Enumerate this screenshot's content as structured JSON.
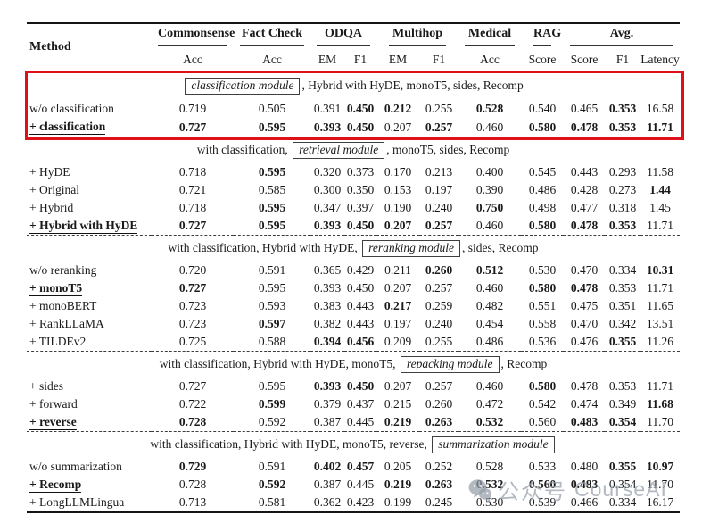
{
  "table": {
    "header": {
      "method": "Method",
      "groups": [
        {
          "label": "Commonsense",
          "span": 1
        },
        {
          "label": "Fact Check",
          "span": 1
        },
        {
          "label": "ODQA",
          "span": 2
        },
        {
          "label": "Multihop",
          "span": 2
        },
        {
          "label": "Medical",
          "span": 1
        },
        {
          "label": "RAG",
          "span": 1
        },
        {
          "label": "Avg.",
          "span": 3
        }
      ],
      "subheaders": [
        "Acc",
        "Acc",
        "EM",
        "F1",
        "EM",
        "F1",
        "Acc",
        "Score",
        "Score",
        "F1",
        "Latency"
      ]
    },
    "sections": [
      {
        "highlighted": true,
        "header_parts": [
          {
            "box": "classification module"
          },
          {
            "text": ", Hybrid with HyDE, monoT5, sides, Recomp"
          }
        ],
        "rows": [
          {
            "method": "w/o classification",
            "selected": false,
            "values": [
              "0.719",
              "0.505",
              "0.391",
              "0.450",
              "0.212",
              "0.255",
              "0.528",
              "0.540",
              "0.465",
              "0.353",
              "16.58"
            ],
            "bold": [
              3,
              4,
              6,
              9
            ]
          },
          {
            "method": "+ classification",
            "selected": true,
            "values": [
              "0.727",
              "0.595",
              "0.393",
              "0.450",
              "0.207",
              "0.257",
              "0.460",
              "0.580",
              "0.478",
              "0.353",
              "11.71"
            ],
            "bold": [
              0,
              1,
              2,
              3,
              5,
              7,
              8,
              9,
              10
            ]
          }
        ]
      },
      {
        "highlighted": false,
        "header_parts": [
          {
            "text": "with classification, "
          },
          {
            "box": "retrieval module"
          },
          {
            "text": ", monoT5, sides, Recomp"
          }
        ],
        "rows": [
          {
            "method": "+ HyDE",
            "selected": false,
            "values": [
              "0.718",
              "0.595",
              "0.320",
              "0.373",
              "0.170",
              "0.213",
              "0.400",
              "0.545",
              "0.443",
              "0.293",
              "11.58"
            ],
            "bold": [
              1
            ]
          },
          {
            "method": "+ Original",
            "selected": false,
            "values": [
              "0.721",
              "0.585",
              "0.300",
              "0.350",
              "0.153",
              "0.197",
              "0.390",
              "0.486",
              "0.428",
              "0.273",
              "1.44"
            ],
            "bold": [
              10
            ]
          },
          {
            "method": "+ Hybrid",
            "selected": false,
            "values": [
              "0.718",
              "0.595",
              "0.347",
              "0.397",
              "0.190",
              "0.240",
              "0.750",
              "0.498",
              "0.477",
              "0.318",
              "1.45"
            ],
            "bold": [
              1,
              6
            ]
          },
          {
            "method": "+ Hybrid with HyDE",
            "selected": true,
            "values": [
              "0.727",
              "0.595",
              "0.393",
              "0.450",
              "0.207",
              "0.257",
              "0.460",
              "0.580",
              "0.478",
              "0.353",
              "11.71"
            ],
            "bold": [
              0,
              1,
              2,
              3,
              4,
              5,
              7,
              8,
              9
            ]
          }
        ]
      },
      {
        "highlighted": false,
        "header_parts": [
          {
            "text": "with classification, Hybrid with HyDE, "
          },
          {
            "box": "reranking module"
          },
          {
            "text": ", sides, Recomp"
          }
        ],
        "rows": [
          {
            "method": "w/o reranking",
            "selected": false,
            "values": [
              "0.720",
              "0.591",
              "0.365",
              "0.429",
              "0.211",
              "0.260",
              "0.512",
              "0.530",
              "0.470",
              "0.334",
              "10.31"
            ],
            "bold": [
              5,
              6,
              10
            ]
          },
          {
            "method": "+ monoT5",
            "selected": true,
            "values": [
              "0.727",
              "0.595",
              "0.393",
              "0.450",
              "0.207",
              "0.257",
              "0.460",
              "0.580",
              "0.478",
              "0.353",
              "11.71"
            ],
            "bold": [
              0,
              7,
              8
            ]
          },
          {
            "method": "+ monoBERT",
            "selected": false,
            "values": [
              "0.723",
              "0.593",
              "0.383",
              "0.443",
              "0.217",
              "0.259",
              "0.482",
              "0.551",
              "0.475",
              "0.351",
              "11.65"
            ],
            "bold": [
              4
            ]
          },
          {
            "method": "+ RankLLaMA",
            "selected": false,
            "values": [
              "0.723",
              "0.597",
              "0.382",
              "0.443",
              "0.197",
              "0.240",
              "0.454",
              "0.558",
              "0.470",
              "0.342",
              "13.51"
            ],
            "bold": [
              1
            ]
          },
          {
            "method": "+ TILDEv2",
            "selected": false,
            "values": [
              "0.725",
              "0.588",
              "0.394",
              "0.456",
              "0.209",
              "0.255",
              "0.486",
              "0.536",
              "0.476",
              "0.355",
              "11.26"
            ],
            "bold": [
              2,
              3,
              9
            ]
          }
        ]
      },
      {
        "highlighted": false,
        "header_parts": [
          {
            "text": "with classification, Hybrid with HyDE, monoT5, "
          },
          {
            "box": "repacking module"
          },
          {
            "text": ", Recomp"
          }
        ],
        "rows": [
          {
            "method": "+ sides",
            "selected": false,
            "values": [
              "0.727",
              "0.595",
              "0.393",
              "0.450",
              "0.207",
              "0.257",
              "0.460",
              "0.580",
              "0.478",
              "0.353",
              "11.71"
            ],
            "bold": [
              2,
              3,
              7
            ]
          },
          {
            "method": "+ forward",
            "selected": false,
            "values": [
              "0.722",
              "0.599",
              "0.379",
              "0.437",
              "0.215",
              "0.260",
              "0.472",
              "0.542",
              "0.474",
              "0.349",
              "11.68"
            ],
            "bold": [
              1,
              10
            ]
          },
          {
            "method": "+ reverse",
            "selected": true,
            "values": [
              "0.728",
              "0.592",
              "0.387",
              "0.445",
              "0.219",
              "0.263",
              "0.532",
              "0.560",
              "0.483",
              "0.354",
              "11.70"
            ],
            "bold": [
              0,
              4,
              5,
              6,
              8,
              9
            ]
          }
        ]
      },
      {
        "highlighted": false,
        "header_parts": [
          {
            "text": "with classification, Hybrid with HyDE, monoT5, reverse, "
          },
          {
            "box": "summarization module"
          }
        ],
        "rows": [
          {
            "method": "w/o summarization",
            "selected": false,
            "values": [
              "0.729",
              "0.591",
              "0.402",
              "0.457",
              "0.205",
              "0.252",
              "0.528",
              "0.533",
              "0.480",
              "0.355",
              "10.97"
            ],
            "bold": [
              0,
              2,
              3,
              9,
              10
            ]
          },
          {
            "method": "+ Recomp",
            "selected": true,
            "values": [
              "0.728",
              "0.592",
              "0.387",
              "0.445",
              "0.219",
              "0.263",
              "0.532",
              "0.560",
              "0.483",
              "0.354",
              "11.70"
            ],
            "bold": [
              1,
              4,
              5,
              6,
              7,
              8
            ]
          },
          {
            "method": "+ LongLLMLingua",
            "selected": false,
            "values": [
              "0.713",
              "0.581",
              "0.362",
              "0.423",
              "0.199",
              "0.245",
              "0.530",
              "0.539",
              "0.466",
              "0.334",
              "16.17"
            ],
            "bold": []
          }
        ]
      }
    ]
  },
  "overlays": {
    "highlight_box_color": "#e0101a",
    "watermark": {
      "icon": "wechat-icon",
      "cjk_text": "公众号",
      "latin_text": "CourseAI"
    }
  }
}
